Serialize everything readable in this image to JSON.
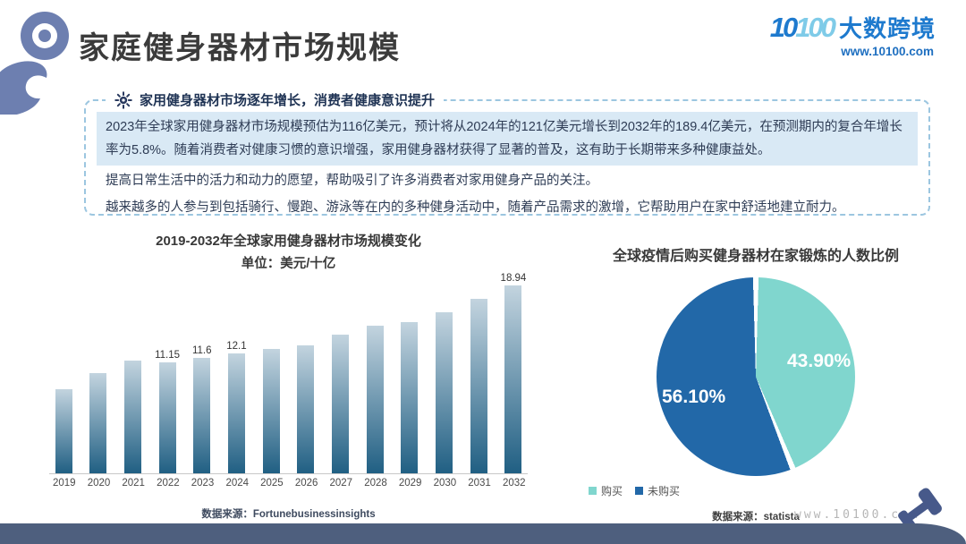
{
  "header": {
    "title": "家庭健身器材市场规模",
    "logo": {
      "mark_dark": "10",
      "mark_light": "100",
      "brand": "大数跨境",
      "url": "www.10100.com"
    }
  },
  "info_box": {
    "heading": "家用健身器材市场逐年增长，消费者健康意识提升",
    "para_highlight": "2023年全球家用健身器材市场规模预估为116亿美元，预计将从2024年的121亿美元增长到2032年的189.4亿美元，在预测期内的复合年增长率为5.8%。随着消费者对健康习惯的意识增强，家用健身器材获得了显著的普及，这有助于长期带来多种健康益处。",
    "para_line2": "提高日常生活中的活力和动力的愿望，帮助吸引了许多消费者对家用健身产品的关注。",
    "para_line3": "越来越多的人参与到包括骑行、慢跑、游泳等在内的多种健身活动中，随着产品需求的激增，它帮助用户在家中舒适地建立耐力。"
  },
  "chart_data": [
    {
      "type": "bar",
      "title": "2019-2032年全球家用健身器材市场规模变化",
      "subtitle": "单位：美元/十亿",
      "categories": [
        "2019",
        "2020",
        "2021",
        "2022",
        "2023",
        "2024",
        "2025",
        "2026",
        "2027",
        "2028",
        "2029",
        "2030",
        "2031",
        "2032"
      ],
      "values": [
        8.5,
        10.1,
        11.4,
        11.15,
        11.6,
        12.1,
        12.5,
        12.9,
        13.95,
        14.9,
        15.2,
        16.2,
        17.6,
        18.94
      ],
      "bar_labels": [
        "",
        "",
        "",
        "11.15",
        "11.6",
        "12.1",
        "",
        "",
        "",
        "",
        "",
        "",
        "",
        "18.94"
      ],
      "ylim": [
        0,
        19.5
      ],
      "grid": false,
      "bar_gradient": [
        "#c3d4df",
        "#205f83"
      ],
      "source": "数据来源：Fortunebusinessinsights"
    },
    {
      "type": "pie",
      "title": "全球疫情后购买健身器材在家锻炼的人数比例",
      "slices": [
        {
          "label": "购买",
          "value": 43.9,
          "display": "43.90%",
          "color": "#80d6ce"
        },
        {
          "label": "未购买",
          "value": 56.1,
          "display": "56.10%",
          "color": "#2268a8"
        }
      ],
      "start_angle_deg": 0,
      "legend_position": "bottom-left",
      "source": "数据来源：statista"
    }
  ],
  "footer": {
    "watermark": "www.10100.com"
  },
  "colors": {
    "accent_blue": "#1e7ace",
    "dashed_border": "#9cc6e0",
    "highlight_bg": "#d9e9f5",
    "footer_band": "#4e5f7e",
    "bicep_icon": "#6d7fb0",
    "dumbbell_icon": "#47598a"
  }
}
